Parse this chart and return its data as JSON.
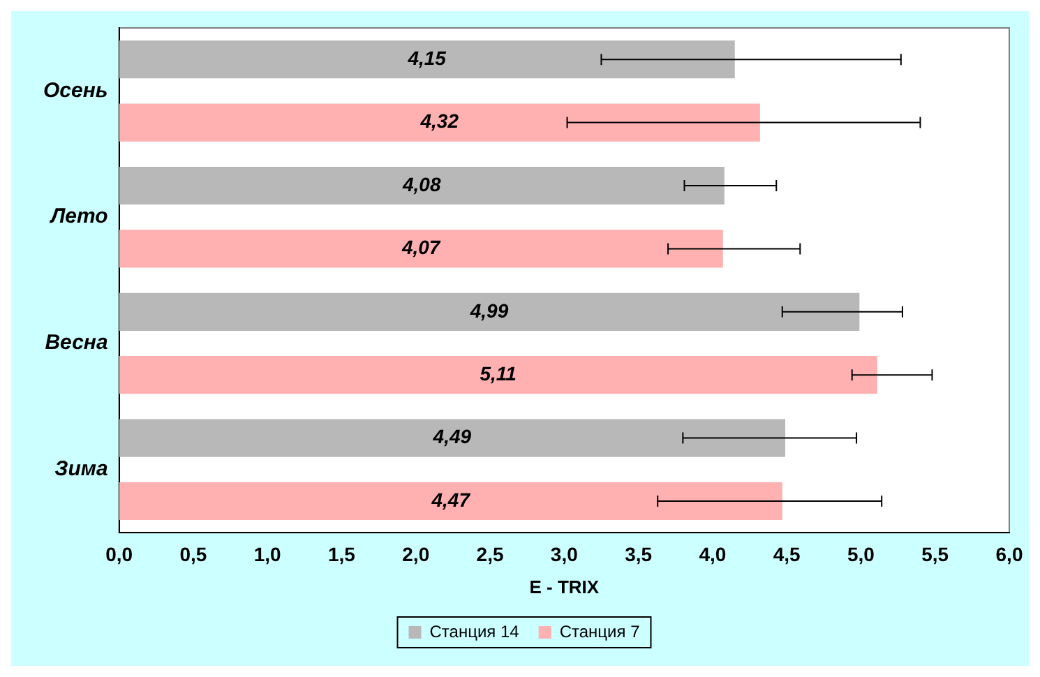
{
  "chart_data": {
    "type": "bar",
    "orientation": "horizontal",
    "xlabel": "E - TRIX",
    "categories": [
      "Осень",
      "Лето",
      "Весна",
      "Зима"
    ],
    "series": [
      {
        "name": "Станция 14",
        "color": "#b8b8b8",
        "values": [
          4.15,
          4.08,
          4.99,
          4.49
        ],
        "value_labels": [
          "4,15",
          "4,08",
          "4,99",
          "4,49"
        ],
        "errors": [
          [
            3.25,
            5.27
          ],
          [
            3.81,
            4.43
          ],
          [
            4.47,
            5.28
          ],
          [
            3.8,
            4.97
          ]
        ]
      },
      {
        "name": "Станция 7",
        "color": "#ffb0b0",
        "values": [
          4.32,
          4.07,
          5.11,
          4.47
        ],
        "value_labels": [
          "4,32",
          "4,07",
          "5,11",
          "4,47"
        ],
        "errors": [
          [
            3.02,
            5.4
          ],
          [
            3.7,
            4.59
          ],
          [
            4.94,
            5.48
          ],
          [
            3.63,
            5.14
          ]
        ]
      }
    ],
    "xlim": [
      0,
      6
    ],
    "xticks": [
      {
        "value": 0,
        "label": "0,0"
      },
      {
        "value": 0.5,
        "label": "0,5"
      },
      {
        "value": 1,
        "label": "1,0"
      },
      {
        "value": 1.5,
        "label": "1,5"
      },
      {
        "value": 2,
        "label": "2,0"
      },
      {
        "value": 2.5,
        "label": "2,5"
      },
      {
        "value": 3,
        "label": "3,0"
      },
      {
        "value": 3.5,
        "label": "3,5"
      },
      {
        "value": 4,
        "label": "4,0"
      },
      {
        "value": 4.5,
        "label": "4,5"
      },
      {
        "value": 5,
        "label": "5,0"
      },
      {
        "value": 5.5,
        "label": "5,5"
      },
      {
        "value": 6,
        "label": "6,0"
      }
    ],
    "grid": false,
    "legend": "bottom"
  }
}
